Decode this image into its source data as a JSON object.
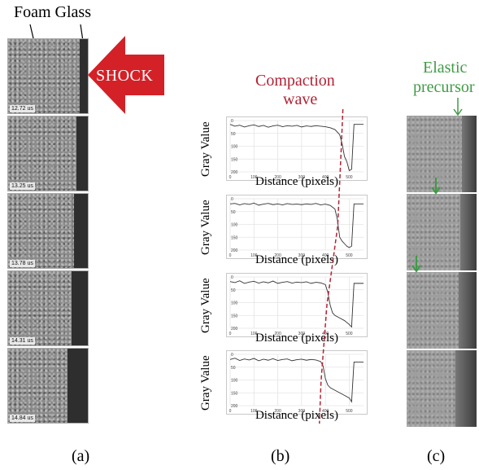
{
  "panel_a": {
    "label_foam": "Foam Glass",
    "shock_label": "SHOCK",
    "timestamps": [
      "12.72 us",
      "13.25 us",
      "13.78 us",
      "14.31 us",
      "14.84 us"
    ],
    "caption": "(a)"
  },
  "panel_b": {
    "title_line1": "Compaction",
    "title_line2": "wave",
    "ylabel": "Gray Value",
    "xlabel": "Distance (pixels)",
    "caption": "(b)",
    "x_ticks": [
      "0",
      "100",
      "200",
      "300",
      "400",
      "500"
    ]
  },
  "panel_c": {
    "title_line1": "Elastic",
    "title_line2": "precursor",
    "caption": "(c)"
  },
  "colors": {
    "shock_red": "#d42027",
    "compaction_red": "#b22234",
    "precursor_green": "#3f9b45"
  },
  "chart_data": {
    "type": "line",
    "xlabel": "Distance (pixels)",
    "ylabel": "Gray Value",
    "xlim": [
      0,
      560
    ],
    "ylim": [
      0,
      200
    ],
    "series": [
      {
        "y_ticks": [
          "0",
          "50",
          "100",
          "150",
          "200"
        ],
        "x": [
          0,
          20,
          40,
          60,
          80,
          100,
          120,
          140,
          160,
          180,
          200,
          220,
          240,
          260,
          280,
          300,
          320,
          340,
          360,
          380,
          400,
          420,
          440,
          460,
          470,
          480,
          490,
          500,
          510,
          520,
          540,
          560
        ],
        "values": [
          15,
          22,
          18,
          25,
          20,
          17,
          23,
          19,
          26,
          21,
          18,
          24,
          20,
          22,
          19,
          25,
          21,
          23,
          20,
          22,
          24,
          28,
          35,
          55,
          90,
          140,
          160,
          195,
          190,
          15,
          15,
          15
        ]
      },
      {
        "y_ticks": [
          "0",
          "50",
          "100",
          "150",
          "200"
        ],
        "x": [
          0,
          20,
          40,
          60,
          80,
          100,
          120,
          140,
          160,
          180,
          200,
          220,
          240,
          260,
          280,
          300,
          320,
          340,
          360,
          380,
          400,
          420,
          440,
          450,
          460,
          470,
          480,
          490,
          500,
          510,
          520,
          540,
          560
        ],
        "values": [
          20,
          18,
          24,
          19,
          22,
          17,
          25,
          21,
          18,
          23,
          20,
          24,
          19,
          22,
          21,
          23,
          20,
          22,
          18,
          24,
          21,
          26,
          40,
          80,
          150,
          165,
          175,
          185,
          190,
          185,
          20,
          20,
          20
        ]
      },
      {
        "y_ticks": [
          "0",
          "50",
          "100",
          "150",
          "200"
        ],
        "x": [
          0,
          20,
          40,
          60,
          80,
          100,
          120,
          140,
          160,
          180,
          200,
          220,
          240,
          260,
          280,
          300,
          320,
          340,
          360,
          380,
          400,
          410,
          420,
          430,
          440,
          460,
          480,
          500,
          510,
          520,
          540,
          560
        ],
        "values": [
          18,
          22,
          15,
          25,
          20,
          17,
          24,
          19,
          23,
          16,
          25,
          21,
          18,
          24,
          20,
          22,
          19,
          25,
          21,
          23,
          30,
          60,
          110,
          140,
          150,
          160,
          170,
          185,
          195,
          25,
          25,
          25
        ]
      },
      {
        "y_ticks": [
          "0",
          "50",
          "100",
          "150",
          "200"
        ],
        "x": [
          0,
          20,
          40,
          60,
          80,
          100,
          120,
          140,
          160,
          180,
          200,
          220,
          240,
          260,
          280,
          300,
          320,
          340,
          360,
          380,
          390,
          400,
          410,
          420,
          440,
          460,
          480,
          500,
          510,
          520,
          540,
          560
        ],
        "values": [
          20,
          15,
          24,
          18,
          22,
          16,
          25,
          19,
          23,
          17,
          24,
          20,
          18,
          25,
          21,
          19,
          23,
          20,
          22,
          28,
          45,
          95,
          120,
          130,
          140,
          150,
          160,
          170,
          185,
          30,
          30,
          30
        ]
      }
    ],
    "front_x": [
      470,
      455,
      410,
      385
    ]
  }
}
